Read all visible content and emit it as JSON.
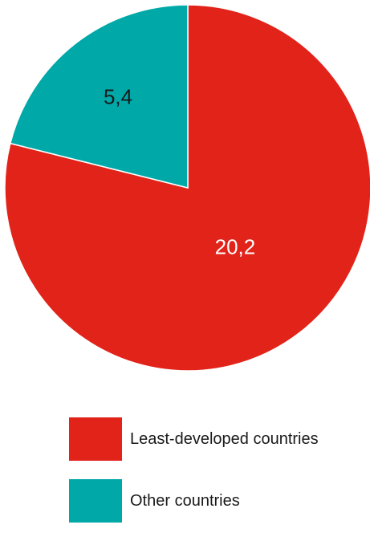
{
  "chart_data": {
    "type": "pie",
    "slices": [
      {
        "label": "Least-developed countries",
        "value": 20.2,
        "value_label": "20,2",
        "color": "#e2231a",
        "label_color": "#ffffff"
      },
      {
        "label": "Other countries",
        "value": 5.4,
        "value_label": "5,4",
        "color": "#00a9a8",
        "label_color": "#1a1a1a"
      }
    ],
    "legend_placement": "bottom"
  }
}
